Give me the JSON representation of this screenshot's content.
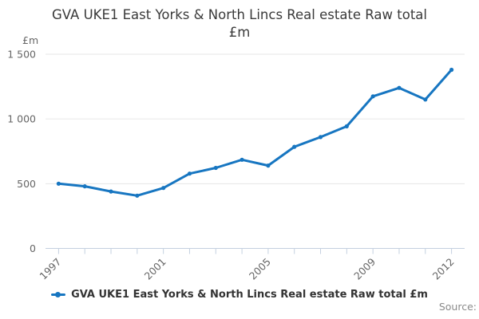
{
  "title_lines": [
    "GVA UKE1 East Yorks & North Lincs Real estate Raw total",
    "£m"
  ],
  "y_axis": {
    "unit_label": "£m",
    "ticks": [
      {
        "value": 0,
        "label": "0"
      },
      {
        "value": 500,
        "label": "500"
      },
      {
        "value": 1000,
        "label": "1 000"
      },
      {
        "value": 1500,
        "label": "1 500"
      }
    ]
  },
  "x_axis": {
    "labeled_years": [
      1997,
      2001,
      2005,
      2009,
      2012
    ]
  },
  "legend": {
    "label": "GVA UKE1 East Yorks & North Lincs Real estate Raw total £m"
  },
  "source": {
    "label": "Source:"
  },
  "colors": {
    "line": "#1776c1",
    "grid": "#e6e6e6",
    "axis": "#c4d0e0",
    "tick_text": "#666666",
    "title_text": "#3a3a3a",
    "legend_text": "#333333",
    "source_text": "#8a8a8a",
    "background": "#ffffff"
  },
  "chart_data": {
    "type": "line",
    "title": "GVA UKE1 East Yorks & North Lincs Real estate Raw total £m",
    "series_name": "GVA UKE1 East Yorks & North Lincs Real estate Raw total £m",
    "x": [
      1997,
      1998,
      1999,
      2000,
      2001,
      2002,
      2003,
      2004,
      2005,
      2006,
      2007,
      2008,
      2009,
      2010,
      2011,
      2012
    ],
    "values": [
      500,
      480,
      440,
      408,
      467,
      578,
      622,
      685,
      640,
      785,
      860,
      943,
      1175,
      1240,
      1150,
      1380
    ],
    "xlabel": "",
    "ylabel": "£m",
    "ylim": [
      0,
      1500
    ],
    "y_tick_interval": 500,
    "x_labeled_ticks": [
      1997,
      2001,
      2005,
      2009,
      2012
    ],
    "grid": true,
    "legend_position": "bottom",
    "marker": "circle"
  }
}
